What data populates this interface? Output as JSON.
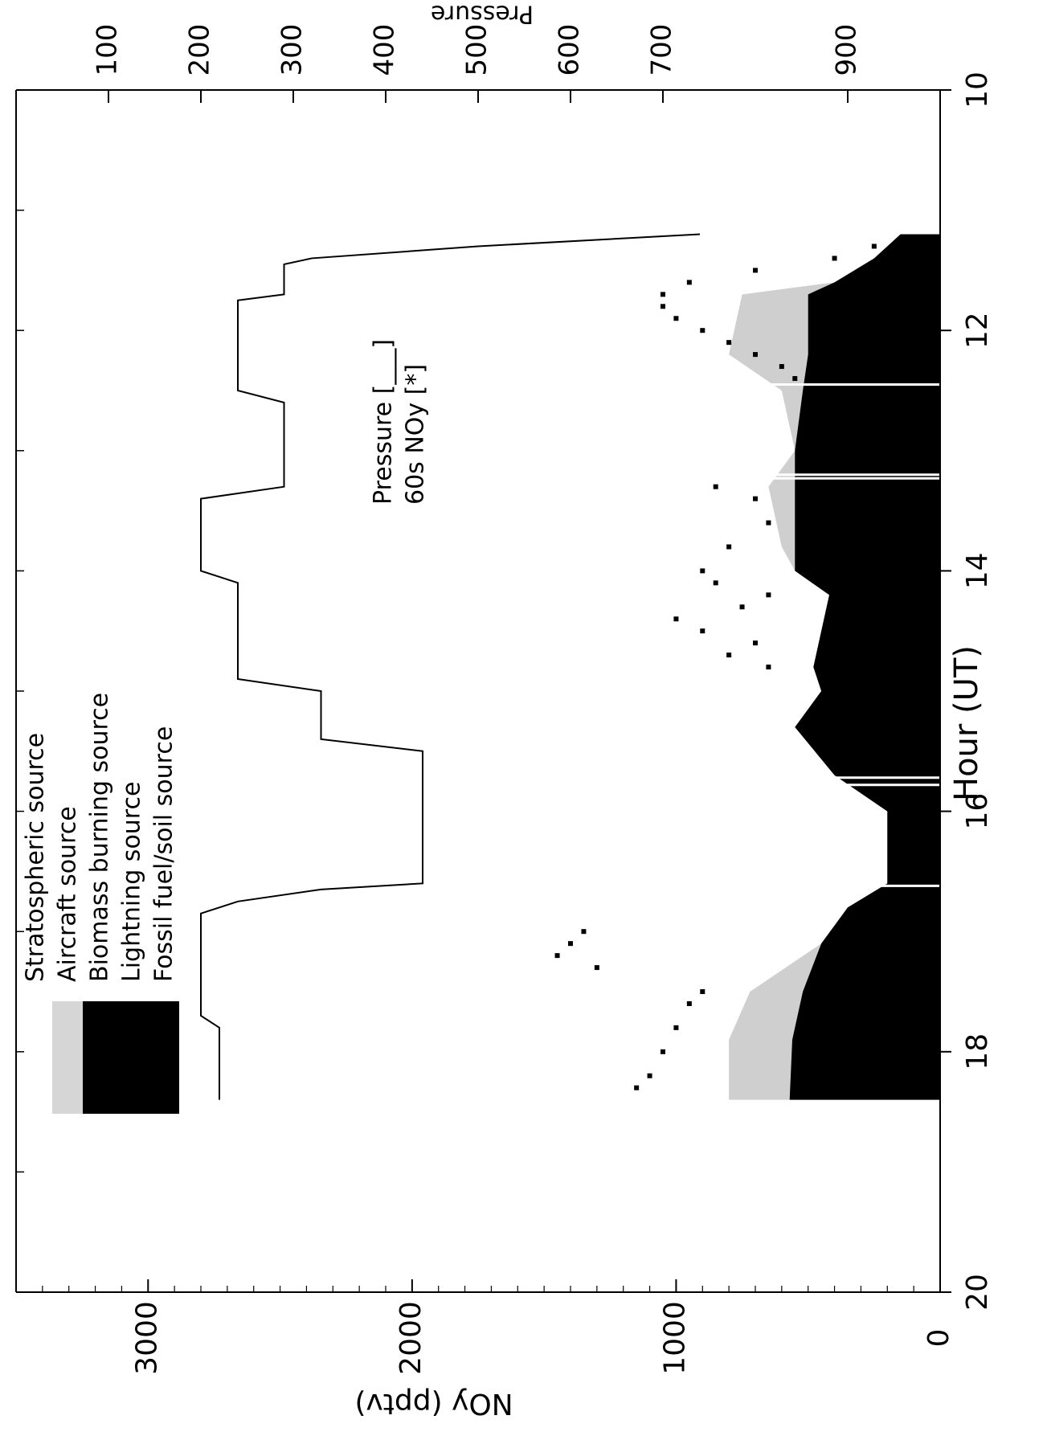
{
  "chart_data": {
    "type": "area",
    "orientation": "rotated-90-clockwise",
    "xlabel": "Hour (UT)",
    "ylabel": "NOy (pptv)",
    "y2label": "Pressure",
    "xlim": [
      10,
      20
    ],
    "ylim": [
      0,
      3500
    ],
    "y2lim": [
      0,
      1000
    ],
    "y2_reversed": true,
    "xticks": [
      10,
      12,
      14,
      16,
      18,
      20
    ],
    "yticks": [
      0,
      1000,
      2000,
      3000
    ],
    "y2ticks": [
      100,
      200,
      300,
      400,
      500,
      600,
      700,
      900
    ],
    "legend": {
      "areas": [
        {
          "label": "Stratospheric source",
          "color": "#ffffff"
        },
        {
          "label": "Aircraft source",
          "color": "#cfcfcf"
        },
        {
          "label": "Biomass burning source",
          "color": "#000000"
        },
        {
          "label": "Lightning source",
          "color": "#000000"
        },
        {
          "label": "Fossil fuel/soil source",
          "color": "#000000"
        }
      ],
      "lines": [
        {
          "label": "Pressure [___]"
        },
        {
          "label": "60s NOy [*]"
        }
      ]
    },
    "stack": [
      {
        "x": 11.2,
        "dark": 150,
        "light": 0
      },
      {
        "x": 11.4,
        "dark": 250,
        "light": 0
      },
      {
        "x": 11.6,
        "dark": 400,
        "light": 0
      },
      {
        "x": 11.7,
        "dark": 500,
        "light": 750
      },
      {
        "x": 12.2,
        "dark": 500,
        "light": 800
      },
      {
        "x": 12.5,
        "dark": 520,
        "light": 600
      },
      {
        "x": 13.0,
        "dark": 550,
        "light": 420
      },
      {
        "x": 13.3,
        "dark": 550,
        "light": 650
      },
      {
        "x": 13.8,
        "dark": 550,
        "light": 600
      },
      {
        "x": 14.0,
        "dark": 550,
        "light": 520
      },
      {
        "x": 14.2,
        "dark": 420,
        "light": 400
      },
      {
        "x": 14.8,
        "dark": 480,
        "light": 330
      },
      {
        "x": 15.0,
        "dark": 450,
        "light": 0
      },
      {
        "x": 15.3,
        "dark": 550,
        "light": 0
      },
      {
        "x": 15.7,
        "dark": 400,
        "light": 0
      },
      {
        "x": 16.0,
        "dark": 200,
        "light": 0
      },
      {
        "x": 16.6,
        "dark": 200,
        "light": 0
      },
      {
        "x": 16.8,
        "dark": 350,
        "light": 350
      },
      {
        "x": 17.1,
        "dark": 450,
        "light": 450
      },
      {
        "x": 17.5,
        "dark": 520,
        "light": 720
      },
      {
        "x": 17.9,
        "dark": 560,
        "light": 800
      },
      {
        "x": 18.4,
        "dark": 570,
        "light": 800
      }
    ],
    "pressure": {
      "x": [
        11.2,
        11.3,
        11.4,
        11.45,
        11.7,
        11.75,
        12.5,
        12.6,
        13.3,
        13.4,
        14.0,
        14.1,
        14.9,
        15.0,
        15.4,
        15.5,
        16.6,
        16.65,
        16.75,
        16.85,
        17.7,
        17.8,
        18.4
      ],
      "y": [
        740,
        500,
        320,
        290,
        290,
        240,
        240,
        290,
        290,
        200,
        200,
        240,
        240,
        330,
        330,
        440,
        440,
        330,
        240,
        200,
        200,
        220,
        220
      ]
    },
    "noy_points": {
      "x": [
        11.3,
        11.4,
        11.5,
        11.6,
        11.7,
        11.8,
        11.9,
        12.0,
        12.1,
        12.2,
        12.3,
        12.4,
        12.5,
        13.3,
        13.4,
        13.6,
        13.8,
        14.0,
        14.1,
        14.2,
        14.3,
        14.4,
        14.5,
        14.6,
        14.7,
        14.8,
        17.0,
        17.1,
        17.2,
        17.3,
        17.5,
        17.6,
        17.8,
        18.0,
        18.2,
        18.3
      ],
      "y": [
        250,
        400,
        700,
        950,
        1050,
        1050,
        1000,
        900,
        800,
        700,
        600,
        550,
        450,
        850,
        700,
        650,
        800,
        900,
        850,
        650,
        750,
        1000,
        900,
        700,
        800,
        650,
        1350,
        1400,
        1450,
        1300,
        900,
        950,
        1000,
        1050,
        1100,
        1150
      ]
    }
  }
}
